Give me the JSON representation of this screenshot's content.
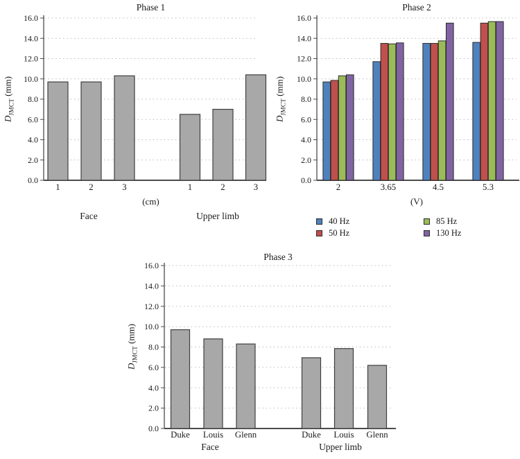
{
  "figure": {
    "background": "#ffffff",
    "text_color": "#1a1a1a",
    "grid_color": "#b5b5b5",
    "axis_color": "#4a4a4a"
  },
  "chart_data": [
    {
      "id": "phase1",
      "type": "bar",
      "title": "Phase 1",
      "ylabel": {
        "var": "D",
        "sub": "JMCT",
        "unit": "(mm)"
      },
      "xlabel": "(cm)",
      "ylim": [
        0,
        16
      ],
      "ytick_labels": [
        "0.0",
        "2.0",
        "4.0",
        "6.0",
        "8.0",
        "10.0",
        "12.0",
        "14.0",
        "16.0"
      ],
      "grid": "horizontal-dotted",
      "legend": "none",
      "bar_color": "#a8a8a8",
      "bar_border": "#3f3f3f",
      "sections": [
        {
          "label": "Face",
          "categories": [
            "1",
            "2",
            "3"
          ],
          "values": [
            9.7,
            9.7,
            10.3
          ]
        },
        {
          "label": "Upper limb",
          "categories": [
            "1",
            "2",
            "3"
          ],
          "values": [
            6.5,
            7.0,
            10.4
          ]
        }
      ]
    },
    {
      "id": "phase2",
      "type": "bar",
      "title": "Phase 2",
      "ylabel": {
        "var": "D",
        "sub": "JMCT",
        "unit": "(mm)"
      },
      "xlabel": "(V)",
      "ylim": [
        0,
        16
      ],
      "ytick_labels": [
        "0.0",
        "2.0",
        "4.0",
        "6.0",
        "8.0",
        "10.0",
        "12.0",
        "14.0",
        "16.0"
      ],
      "grid": "horizontal-dotted",
      "legend": "below, two columns",
      "categories": [
        "2",
        "3.65",
        "4.5",
        "5.3"
      ],
      "series": [
        {
          "name": "40 Hz",
          "color": "#4f81bd",
          "values": [
            9.7,
            11.7,
            13.5,
            13.6
          ]
        },
        {
          "name": "50 Hz",
          "color": "#c0504d",
          "values": [
            9.85,
            13.5,
            13.5,
            15.5
          ]
        },
        {
          "name": "85 Hz",
          "color": "#9bbb59",
          "values": [
            10.3,
            13.45,
            13.75,
            15.65
          ]
        },
        {
          "name": "130 Hz",
          "color": "#8064a2",
          "values": [
            10.4,
            13.55,
            15.5,
            15.65
          ]
        }
      ]
    },
    {
      "id": "phase3",
      "type": "bar",
      "title": "Phase 3",
      "ylabel": {
        "var": "D",
        "sub": "JMCT",
        "unit": "(mm)"
      },
      "xlabel": "",
      "ylim": [
        0,
        16
      ],
      "ytick_labels": [
        "0.0",
        "2.0",
        "4.0",
        "6.0",
        "8.0",
        "10.0",
        "12.0",
        "14.0",
        "16.0"
      ],
      "grid": "horizontal-dotted",
      "legend": "none",
      "bar_color": "#a8a8a8",
      "bar_border": "#3f3f3f",
      "sections": [
        {
          "label": "Face",
          "categories": [
            "Duke",
            "Louis",
            "Glenn"
          ],
          "values": [
            9.7,
            8.8,
            8.3
          ]
        },
        {
          "label": "Upper limb",
          "categories": [
            "Duke",
            "Louis",
            "Glenn"
          ],
          "values": [
            6.95,
            7.85,
            6.2
          ]
        }
      ]
    }
  ]
}
